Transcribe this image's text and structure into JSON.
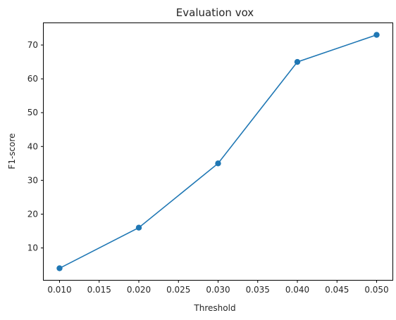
{
  "chart_data": {
    "type": "line",
    "title": "Evaluation vox",
    "xlabel": "Threshold",
    "ylabel": "F1-score",
    "x": [
      0.01,
      0.02,
      0.03,
      0.04,
      0.05
    ],
    "series": [
      {
        "values": [
          4,
          16,
          35,
          65,
          73
        ]
      }
    ],
    "xlim": [
      0.008,
      0.052
    ],
    "ylim": [
      0.55,
      76.45
    ],
    "xticks": [
      "0.010",
      "0.015",
      "0.020",
      "0.025",
      "0.030",
      "0.035",
      "0.040",
      "0.045",
      "0.050"
    ],
    "yticks": [
      "10",
      "20",
      "30",
      "40",
      "50",
      "60",
      "70"
    ],
    "grid": false,
    "line_color": "#1f77b4",
    "marker": "circle"
  }
}
